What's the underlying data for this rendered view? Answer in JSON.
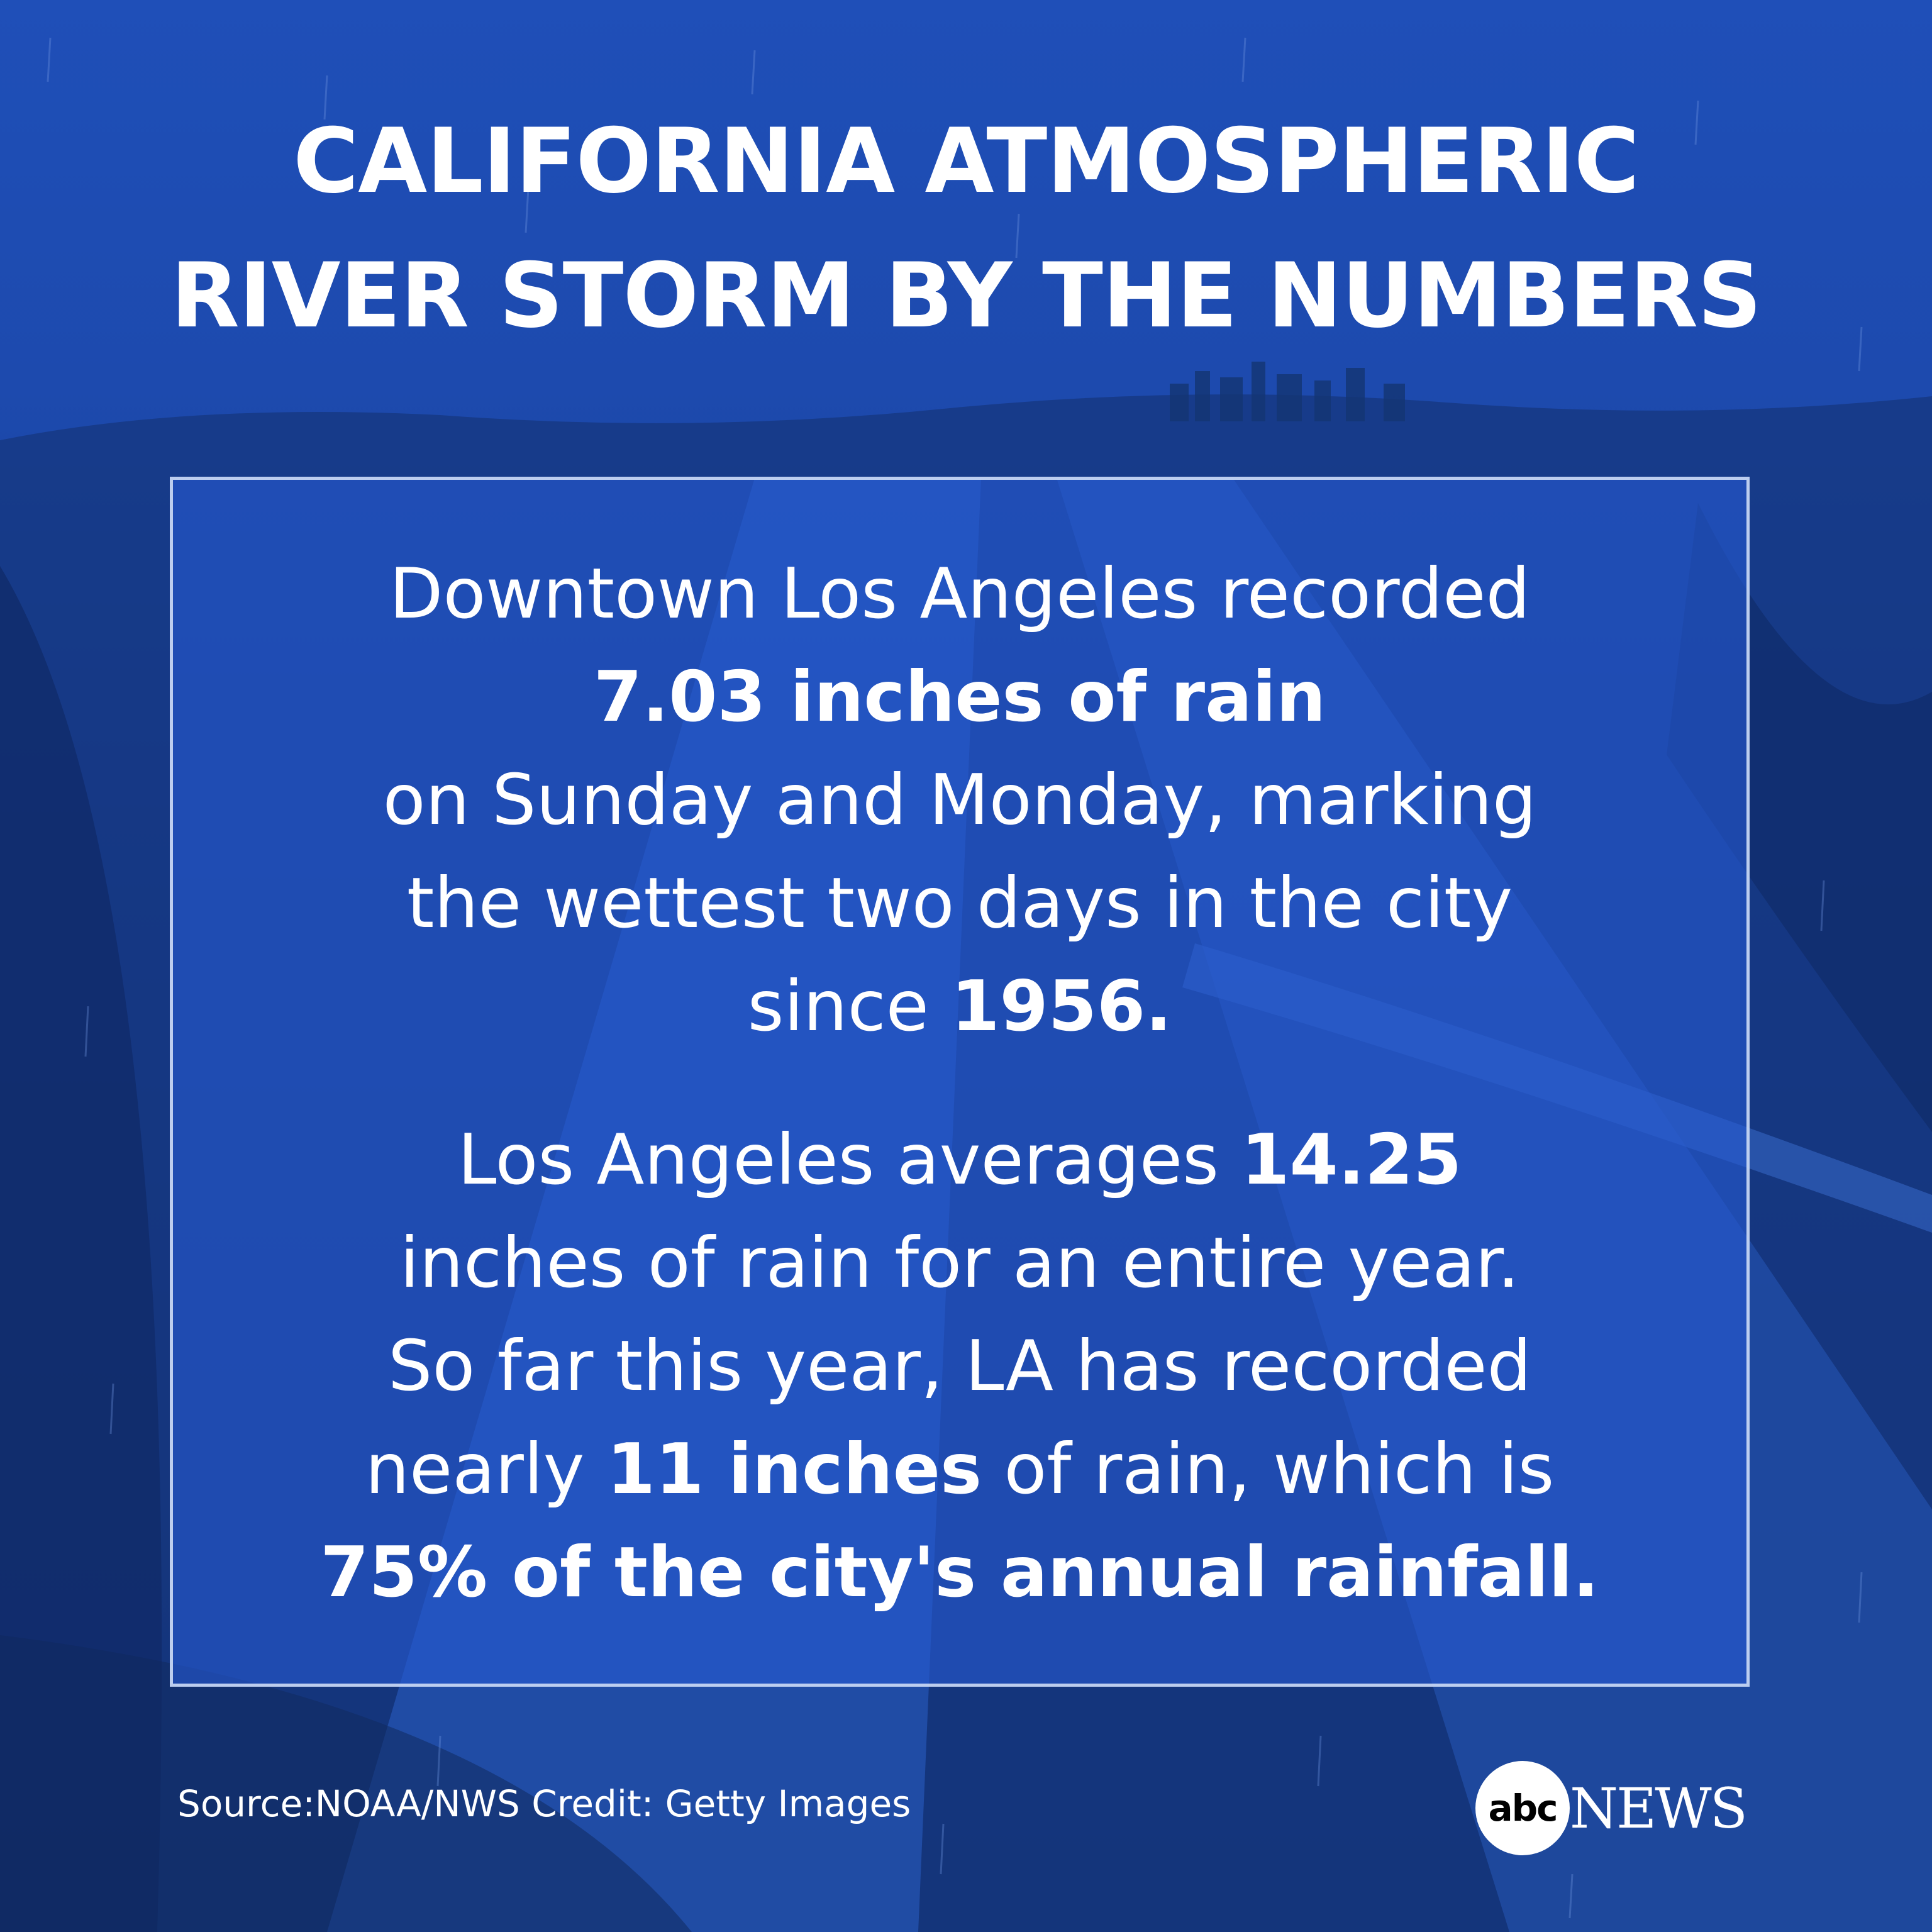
{
  "headline": {
    "line1": "CALIFORNIA ATMOSPHERIC",
    "line2": "RIVER STORM BY THE NUMBERS"
  },
  "panel": {
    "paragraph1": {
      "l1": "Downtown Los Angeles recorded",
      "l2_bold": "7.03 inches of rain",
      "l3": "on Sunday and Monday, marking",
      "l4": "the wettest two days in the city",
      "l5_pre": "since ",
      "l5_bold": "1956."
    },
    "paragraph2": {
      "l1_pre": "Los Angeles averages ",
      "l1_bold": "14.25",
      "l2": "inches of rain for an entire year.",
      "l3": "So far this year, LA has recorded",
      "l4_pre": "nearly ",
      "l4_bold": "11 inches",
      "l4_post": " of rain, which is",
      "l5_bold": "75% of the city's annual rainfall."
    }
  },
  "footer": {
    "credit": "Source:NOAA/NWS Credit: Getty Images"
  },
  "logo": {
    "circle": "abc",
    "text": "NEWS"
  },
  "colors": {
    "background": "#1d4aae",
    "panel": "#265ad2",
    "text": "#ffffff"
  }
}
